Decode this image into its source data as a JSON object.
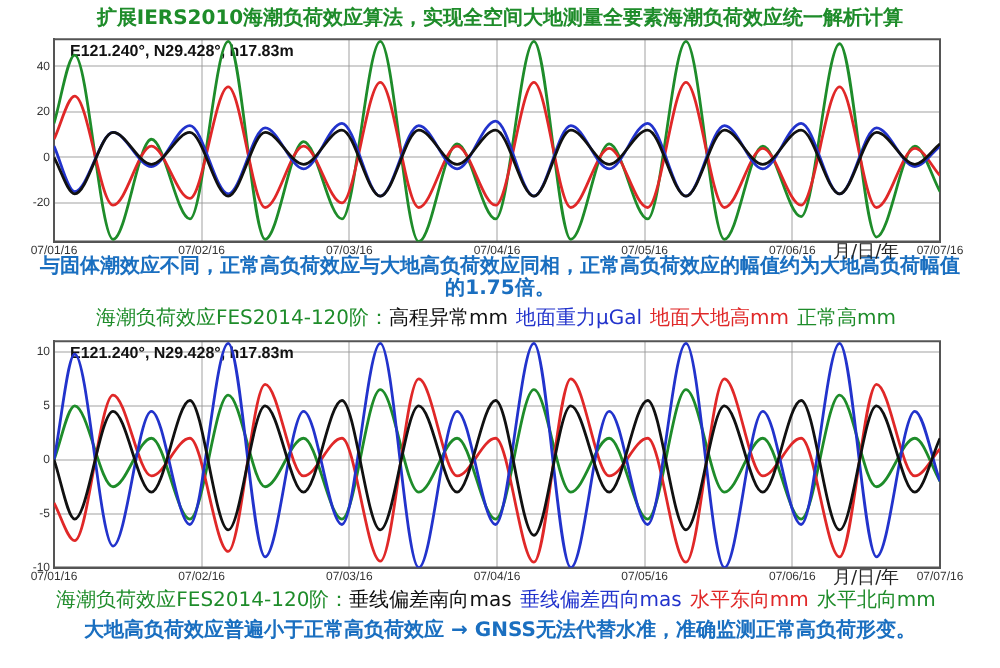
{
  "chart_data": [
    {
      "type": "line",
      "title": "扩展IERS2010海潮负荷效应算法，实现全空间大地测量全要素海潮负荷效应统一解析计算",
      "xlabel": "月/日/年",
      "legend_title": "海潮负荷效应FES2014-120阶：",
      "legend": "bottom",
      "grid": true,
      "annotations": [
        "E121.240°, N29.428°, h17.83m",
        "与固体潮效应不同，正常高负荷效应与大地高负荷效应同相，正常高负荷效应的幅值约为大地高负荷幅值的1.75倍。"
      ],
      "x": [
        "--07-01T00:00",
        "--07-01T03:22",
        "--07-01T09:36",
        "--07-01T15:50",
        "--07-01T22:05",
        "--07-02T04:19",
        "--07-02T10:19",
        "--07-02T16:34",
        "--07-02T22:48",
        "--07-03T05:02",
        "--07-03T11:17",
        "--07-03T17:31",
        "--07-03T23:46",
        "--07-04T06:00",
        "--07-04T12:00",
        "--07-04T18:14",
        "--07-05T00:29",
        "--07-05T06:43",
        "--07-05T12:58",
        "--07-05T19:12",
        "--07-06T01:26",
        "--07-06T07:41",
        "--07-06T13:41",
        "--07-06T19:55",
        "--07-07T00:00"
      ],
      "xlim": [
        "--07-01",
        "--07-07"
      ],
      "xticks": [
        {
          "value": "--07-01",
          "label": "07/01/16"
        },
        {
          "value": "--07-02",
          "label": "07/02/16"
        },
        {
          "value": "--07-03",
          "label": "07/03/16"
        },
        {
          "value": "--07-04",
          "label": "07/04/16"
        },
        {
          "value": "--07-05",
          "label": "07/05/16"
        },
        {
          "value": "--07-06",
          "label": "07/06/16"
        },
        {
          "value": "--07-07",
          "label": "07/07/16"
        }
      ],
      "ylim": [
        -37,
        52
      ],
      "yticks": [
        -20,
        0,
        20,
        40
      ],
      "series": [
        {
          "name": "高程异常mm",
          "color": "#111111",
          "values": [
            0,
            -16,
            11,
            -3,
            11,
            -17,
            11,
            -3,
            12,
            -17,
            12,
            -3,
            12,
            -17,
            12,
            -3,
            12,
            -17,
            12,
            -3,
            12,
            -16,
            11,
            -3,
            6
          ]
        },
        {
          "name": "地面重力μGal",
          "color": "#2233cc",
          "values": [
            5,
            -15,
            11,
            -4,
            14,
            -16,
            13,
            -5,
            15,
            -17,
            14,
            -5,
            16,
            -17,
            14,
            -5,
            15,
            -17,
            14,
            -5,
            15,
            -16,
            13,
            -4,
            5
          ]
        },
        {
          "name": "地面大地高mm",
          "color": "#e02828",
          "values": [
            8,
            27,
            -21,
            5,
            -18,
            31,
            -22,
            5,
            -20,
            33,
            -22,
            5,
            -21,
            33,
            -22,
            4,
            -22,
            33,
            -22,
            4,
            -21,
            31,
            -22,
            4,
            -8
          ]
        },
        {
          "name": "正常高mm",
          "color": "#1e8c2a",
          "values": [
            15,
            45,
            -36,
            8,
            -27,
            51,
            -36,
            7,
            -27,
            51,
            -37,
            6,
            -27,
            51,
            -36,
            6,
            -27,
            51,
            -36,
            5,
            -26,
            50,
            -35,
            5,
            -15
          ]
        }
      ]
    },
    {
      "type": "line",
      "xlabel": "月/日/年",
      "legend_title": "海潮负荷效应FES2014-120阶：",
      "legend": "bottom",
      "grid": true,
      "annotations": [
        "E121.240°, N29.428°, h17.83m",
        "大地高负荷效应普遍小于正常高负荷效应 → GNSS无法代替水准，准确监测正常高负荷形变。"
      ],
      "x": [
        "--07-01T00:00",
        "--07-01T03:22",
        "--07-01T09:36",
        "--07-01T15:50",
        "--07-01T22:05",
        "--07-02T04:19",
        "--07-02T10:19",
        "--07-02T16:34",
        "--07-02T22:48",
        "--07-03T05:02",
        "--07-03T11:17",
        "--07-03T17:31",
        "--07-03T23:46",
        "--07-04T06:00",
        "--07-04T12:00",
        "--07-04T18:14",
        "--07-05T00:29",
        "--07-05T06:43",
        "--07-05T12:58",
        "--07-05T19:12",
        "--07-06T01:26",
        "--07-06T07:41",
        "--07-06T13:41",
        "--07-06T19:55",
        "--07-07T00:00"
      ],
      "xlim": [
        "--07-01",
        "--07-07"
      ],
      "xticks": [
        {
          "value": "--07-01",
          "label": "07/01/16"
        },
        {
          "value": "--07-02",
          "label": "07/02/16"
        },
        {
          "value": "--07-03",
          "label": "07/03/16"
        },
        {
          "value": "--07-04",
          "label": "07/04/16"
        },
        {
          "value": "--07-05",
          "label": "07/05/16"
        },
        {
          "value": "--07-06",
          "label": "07/06/16"
        },
        {
          "value": "--07-07",
          "label": "07/07/16"
        }
      ],
      "ylim": [
        -10,
        11
      ],
      "yticks": [
        -10,
        -5,
        0,
        5,
        10
      ],
      "series": [
        {
          "name": "垂线偏差南向mas",
          "color": "#111111",
          "values": [
            0,
            -5.5,
            4.5,
            -3,
            5.5,
            -6.5,
            5,
            -3,
            5.5,
            -6.5,
            5,
            -3,
            5.5,
            -7,
            5,
            -3,
            5.5,
            -6.5,
            5,
            -3,
            5.5,
            -6.5,
            5,
            -3,
            2
          ]
        },
        {
          "name": "垂线偏差西向mas",
          "color": "#2233cc",
          "values": [
            0,
            9.8,
            -8,
            4.5,
            -6,
            10.8,
            -9,
            4.5,
            -6,
            10.8,
            -10,
            4.5,
            -6,
            10.8,
            -10,
            4.5,
            -6,
            10.8,
            -10,
            4.5,
            -6,
            10.8,
            -9,
            4.5,
            -2
          ]
        },
        {
          "name": "水平东向mm",
          "color": "#e02828",
          "values": [
            -4,
            -7.5,
            6,
            -1.5,
            2,
            -8.5,
            7,
            -1.5,
            2,
            -9.4,
            7.5,
            -1.5,
            2,
            -9.5,
            7.5,
            -1.5,
            2,
            -9.5,
            7.5,
            -1.5,
            2,
            -9,
            7,
            -1.5,
            1
          ]
        },
        {
          "name": "水平北向mm",
          "color": "#1e8c2a",
          "values": [
            0,
            5,
            -2.5,
            2,
            -5.5,
            6,
            -2.5,
            2,
            -5.5,
            6.5,
            -3,
            2,
            -5.5,
            6.5,
            -3,
            2,
            -5.5,
            6.5,
            -3,
            2,
            -5.5,
            6,
            -2.5,
            2,
            -2
          ]
        }
      ]
    }
  ]
}
